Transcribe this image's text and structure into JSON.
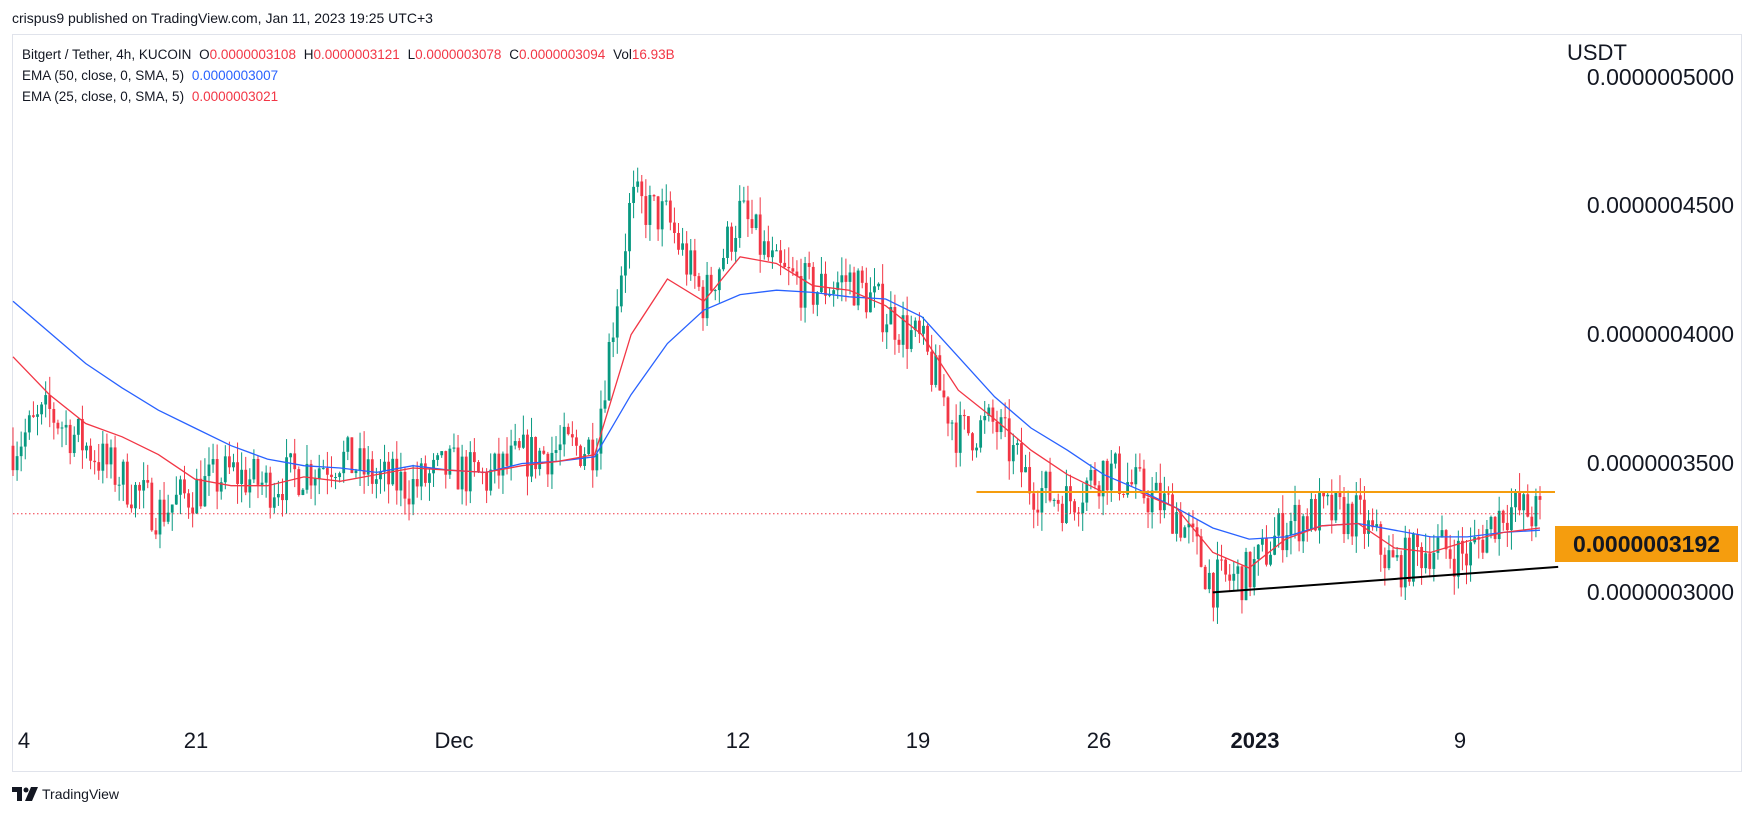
{
  "caption": "crispus9 published on TradingView.com, Jan 11, 2023 19:25 UTC+3",
  "footer": {
    "brand": "TradingView",
    "icon": "tradingview-logo-icon"
  },
  "legend": {
    "symbol": "Bitgert / Tether, 4h, KUCOIN",
    "o_label": "O",
    "o": "0.0000003108",
    "h_label": "H",
    "h": "0.0000003121",
    "l_label": "L",
    "l": "0.0000003078",
    "c_label": "C",
    "c": "0.0000003094",
    "vol_label": "Vol",
    "vol": "16.93B",
    "ema50_label": "EMA (50, close, 0, SMA, 5)",
    "ema50_value": "0.0000003007",
    "ema25_label": "EMA (25, close, 0, SMA, 5)",
    "ema25_value": "0.0000003021"
  },
  "colors": {
    "up": "#089981",
    "down": "#f23645",
    "ema50": "#2962ff",
    "ema25": "#f23645",
    "resistance": "#f59d0e",
    "trendline": "#000000",
    "last_price": "#f23645"
  },
  "chart_data": {
    "type": "line",
    "currency": "USDT",
    "y_ticks": [
      "0.0000005000",
      "0.0000004500",
      "0.0000004000",
      "0.0000003500",
      "0.0000003000"
    ],
    "ylim": [
      2.4e-07,
      5.05e-07
    ],
    "x_ticks": [
      {
        "label": "4",
        "bold": false
      },
      {
        "label": "21",
        "bold": false
      },
      {
        "label": "Dec",
        "bold": false
      },
      {
        "label": "12",
        "bold": false
      },
      {
        "label": "19",
        "bold": false
      },
      {
        "label": "26",
        "bold": false
      },
      {
        "label": "2023",
        "bold": true
      },
      {
        "label": "9",
        "bold": false
      }
    ],
    "resistance_level": "0.0000003192",
    "resistance_value": 3.192e-07,
    "last_close": 3.094e-07,
    "series": [
      {
        "name": "EMA (50, close, 0, SMA, 5)",
        "values": [
          4.05e-07,
          3.91e-07,
          3.77e-07,
          3.66e-07,
          3.56e-07,
          3.48e-07,
          3.4e-07,
          3.34e-07,
          3.31e-07,
          3.3e-07,
          3.28e-07,
          3.31e-07,
          3.29e-07,
          3.28e-07,
          3.32e-07,
          3.33e-07,
          3.35e-07,
          3.63e-07,
          3.86e-07,
          4.01e-07,
          4.08e-07,
          4.1e-07,
          4.09e-07,
          4.07e-07,
          4.06e-07,
          3.98e-07,
          3.8e-07,
          3.62e-07,
          3.48e-07,
          3.38e-07,
          3.27e-07,
          3.2e-07,
          3.12e-07,
          3.03e-07,
          2.98e-07,
          2.99e-07,
          3.04e-07,
          3.05e-07,
          3.02e-07,
          2.99e-07,
          2.99e-07,
          3.01e-07,
          3.02e-07
        ]
      },
      {
        "name": "EMA (25, close, 0, SMA, 5)",
        "values": [
          3.8e-07,
          3.63e-07,
          3.5e-07,
          3.44e-07,
          3.36e-07,
          3.25e-07,
          3.22e-07,
          3.22e-07,
          3.26e-07,
          3.24e-07,
          3.27e-07,
          3.3e-07,
          3.29e-07,
          3.28e-07,
          3.31e-07,
          3.33e-07,
          3.36e-07,
          3.9e-07,
          4.15e-07,
          4.05e-07,
          4.25e-07,
          4.22e-07,
          4.12e-07,
          4.1e-07,
          4.03e-07,
          3.9e-07,
          3.65e-07,
          3.52e-07,
          3.38e-07,
          3.27e-07,
          3.19e-07,
          3.19e-07,
          3.12e-07,
          2.92e-07,
          2.85e-07,
          2.98e-07,
          3.04e-07,
          3.05e-07,
          2.94e-07,
          2.92e-07,
          2.97e-07,
          3.01e-07,
          3.03e-07
        ]
      },
      {
        "name": "Price (approx. close)",
        "values": [
          3.4e-07,
          3.55e-07,
          3.4e-07,
          3.25e-07,
          3.1e-07,
          3.2e-07,
          3.28e-07,
          3.22e-07,
          3.29e-07,
          3.35e-07,
          3.25e-07,
          3.22e-07,
          3.3e-07,
          3.25e-07,
          3.35e-07,
          3.38e-07,
          3.4e-07,
          4.5e-07,
          4.42e-07,
          4.05e-07,
          4.45e-07,
          4.18e-07,
          4.1e-07,
          4.15e-07,
          4e-07,
          3.85e-07,
          3.45e-07,
          3.5e-07,
          3.22e-07,
          3.15e-07,
          3.3e-07,
          3.2e-07,
          3.1e-07,
          2.78e-07,
          2.82e-07,
          3.05e-07,
          3.1e-07,
          3.08e-07,
          2.85e-07,
          2.95e-07,
          2.9e-07,
          3.12e-07,
          3.09e-07
        ]
      }
    ],
    "trendline": {
      "from": [
        33,
        2.74e-07
      ],
      "to": [
        42.5,
        2.855e-07
      ]
    }
  }
}
